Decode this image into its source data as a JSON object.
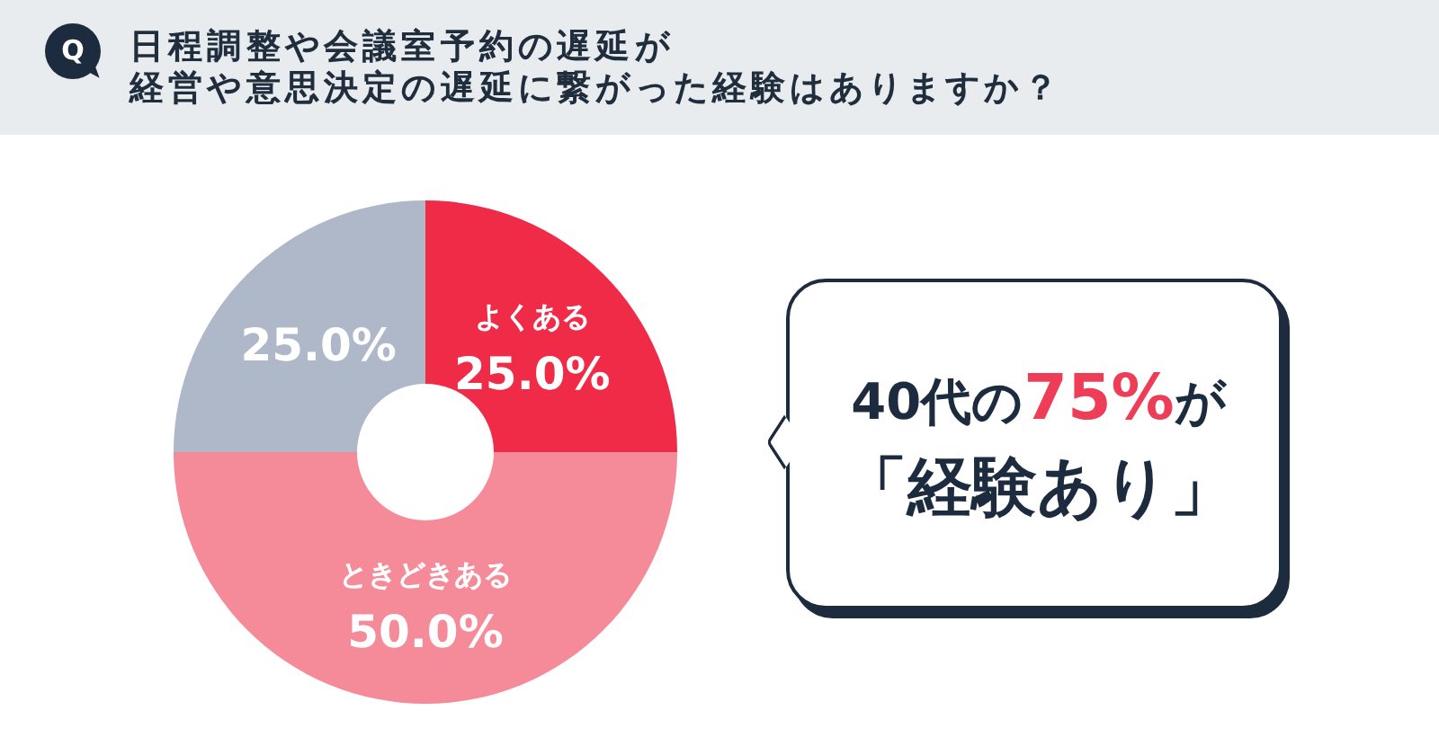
{
  "chart_data": {
    "type": "donut",
    "title": "日程調整や会議室予約の遅延が",
    "subtitle": "経営や意思決定の遅延に繋がった経験はありますか？",
    "categories": [
      "よくある",
      "ときどきある",
      null
    ],
    "values": [
      25,
      50,
      25
    ],
    "colors": [
      "#ef2b48",
      "#f58b98",
      "#afb8c8"
    ],
    "value_labels": [
      "25.0%",
      "50.0%",
      "25.0%"
    ],
    "annotations": [
      "Q",
      "40代の75%が",
      "「経験あり」"
    ]
  }
}
